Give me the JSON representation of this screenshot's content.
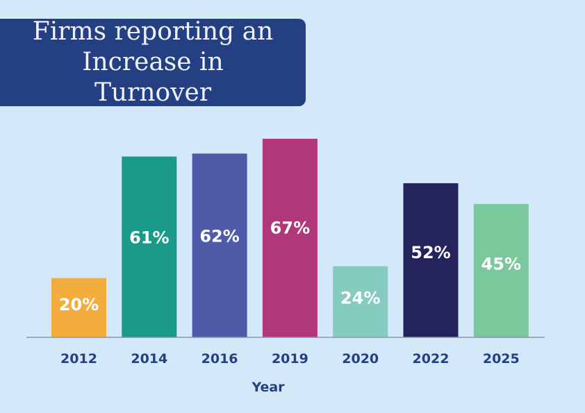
{
  "chart_data": {
    "type": "bar",
    "title": "Firms reporting an Increase in Turnover",
    "title_lines": [
      "Firms reporting an",
      "Increase in Turnover"
    ],
    "xlabel": "Year",
    "ylabel": "",
    "ylim": [
      0,
      100
    ],
    "categories": [
      "2012",
      "2014",
      "2016",
      "2019",
      "2020",
      "2022",
      "2025"
    ],
    "values": [
      20,
      61,
      62,
      67,
      24,
      52,
      45
    ],
    "value_labels": [
      "20%",
      "61%",
      "62%",
      "67%",
      "24%",
      "52%",
      "45%"
    ],
    "colors": [
      "#f2ad3c",
      "#1a9b8a",
      "#4f5aa9",
      "#b0387a",
      "#86cbbf",
      "#24235c",
      "#7bc89c"
    ],
    "label_colors": [
      "#ffffff",
      "#ffffff",
      "#ffffff",
      "#ffffff",
      "#ffffff",
      "#ffffff",
      "#ffffff"
    ],
    "text_color": "#243f82",
    "background": "#d3e8f8",
    "grid": false,
    "legend": "none"
  }
}
